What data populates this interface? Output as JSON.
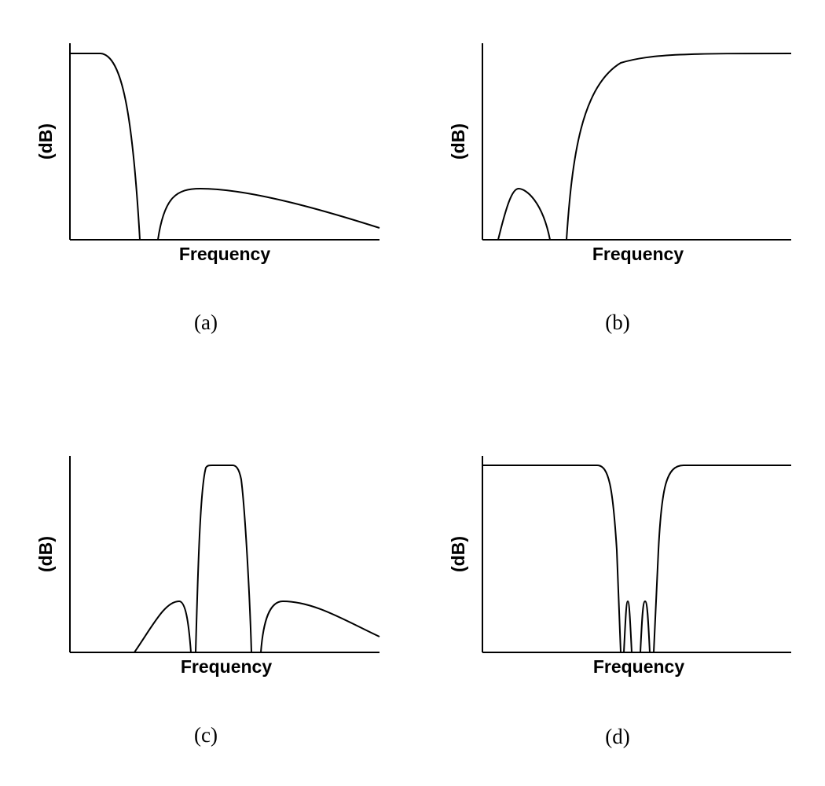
{
  "panels": [
    {
      "caption": "(a)",
      "x_label": "Frequency",
      "y_label": "(dB)"
    },
    {
      "caption": "(b)",
      "x_label": "Frequency",
      "y_label": "(dB)"
    },
    {
      "caption": "(c)",
      "x_label": "Frequency",
      "y_label": "(dB)"
    },
    {
      "caption": "(d)",
      "x_label": "Frequency",
      "y_label": "(dB)"
    }
  ]
}
